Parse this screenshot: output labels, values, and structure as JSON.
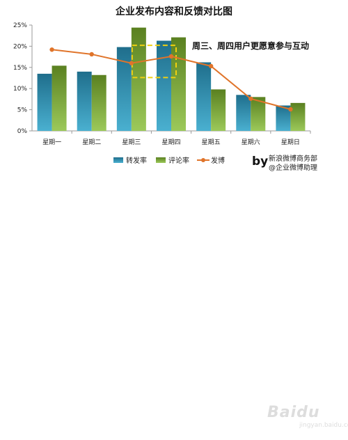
{
  "chart_data": {
    "type": "bar",
    "title": "企业发布内容和反馈对比图",
    "categories": [
      "星期一",
      "星期二",
      "星期三",
      "星期四",
      "星期五",
      "星期六",
      "星期日"
    ],
    "y_ticks": [
      "0%",
      "5%",
      "10%",
      "15%",
      "20%",
      "25%"
    ],
    "ylim": [
      0,
      25
    ],
    "unit": "%",
    "series": [
      {
        "name": "转发率",
        "type": "bar",
        "color": "#2f86a8",
        "values": [
          13.5,
          14.0,
          19.8,
          21.3,
          16.2,
          8.5,
          6.0
        ]
      },
      {
        "name": "评论率",
        "type": "bar",
        "color": "#6e9a2c",
        "values": [
          15.4,
          13.2,
          24.4,
          22.1,
          9.8,
          8.0,
          6.6
        ]
      },
      {
        "name": "发博",
        "type": "line",
        "color": "#e0742a",
        "values": [
          19.2,
          18.1,
          16.0,
          17.6,
          15.3,
          7.6,
          5.1
        ]
      }
    ],
    "annotation": "周三、周四用户更愿意参与互动",
    "highlight_color": "#f0d010",
    "legend_position": "bottom",
    "grid": false
  },
  "credits": {
    "by": "by",
    "line1": "新浪微博商务部",
    "line2": "@企业微博助理"
  },
  "watermark": {
    "text": "Baidu",
    "sub": "jingyan.baidu.com"
  }
}
